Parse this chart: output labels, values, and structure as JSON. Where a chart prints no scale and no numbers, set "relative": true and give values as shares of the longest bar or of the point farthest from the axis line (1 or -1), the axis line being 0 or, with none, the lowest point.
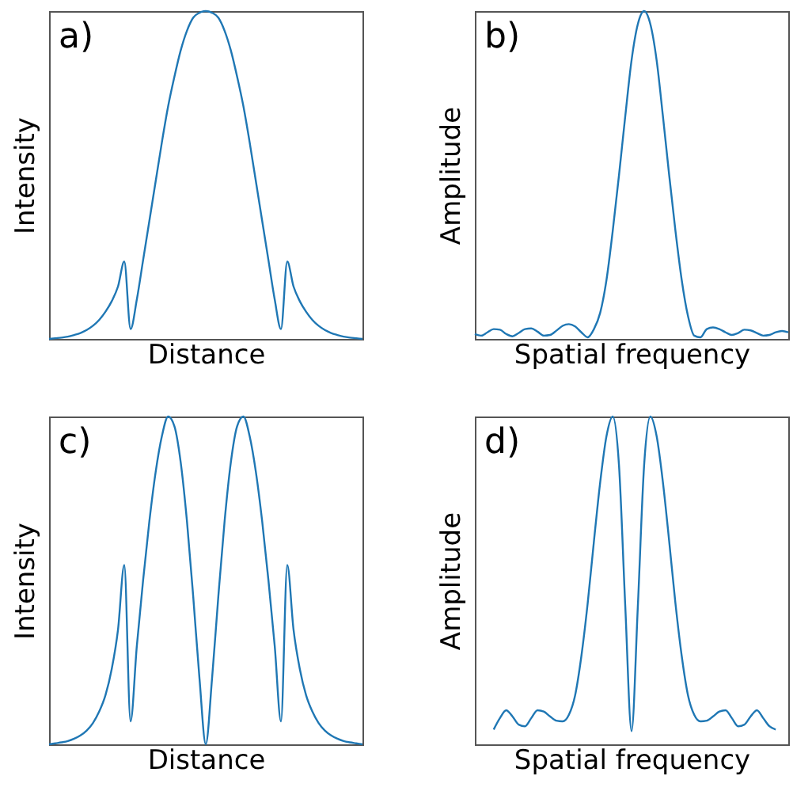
{
  "chart_data": [
    {
      "type": "line",
      "xlabel": "Distance",
      "ylabel": "Intensity",
      "annotations": [
        "a)"
      ],
      "relative": true,
      "categories": [
        null,
        null,
        null,
        null,
        null,
        null,
        null,
        null,
        null,
        null,
        null,
        null,
        null,
        null,
        null,
        null,
        null,
        null,
        null,
        null,
        null,
        null,
        null,
        null,
        null,
        null,
        null,
        null,
        null,
        null,
        null,
        null,
        null,
        null,
        null,
        null,
        null,
        null,
        null,
        null,
        null,
        null,
        null,
        null,
        null,
        null,
        null,
        null,
        null,
        null,
        null
      ],
      "series": [
        {
          "color": "#1f77b4",
          "values": [
            0,
            0.002,
            0.004,
            0.007,
            0.012,
            0.018,
            0.027,
            0.04,
            0.058,
            0.083,
            0.115,
            0.16,
            0.236,
            0.03,
            0.12,
            0.24,
            0.36,
            0.48,
            0.6,
            0.71,
            0.8,
            0.88,
            0.94,
            0.98,
            0.995,
            1,
            0.995,
            0.98,
            0.94,
            0.88,
            0.8,
            0.71,
            0.6,
            0.48,
            0.36,
            0.24,
            0.12,
            0.03,
            0.236,
            0.16,
            0.115,
            0.083,
            0.058,
            0.04,
            0.027,
            0.018,
            0.012,
            0.007,
            0.004,
            0.002,
            0
          ]
        }
      ]
    },
    {
      "type": "line",
      "xlabel": "Spatial frequency",
      "ylabel": "Amplitude",
      "annotations": [
        "b)"
      ],
      "relative": true,
      "categories": [
        null,
        null,
        null,
        null,
        null,
        null,
        null,
        null,
        null,
        null,
        null,
        null,
        null,
        null,
        null,
        null,
        null,
        null,
        null,
        null,
        null,
        null,
        null,
        null,
        null,
        null,
        null,
        null,
        null,
        null,
        null,
        null,
        null,
        null,
        null,
        null,
        null,
        null,
        null,
        null,
        null,
        null,
        null,
        null,
        null,
        null,
        null,
        null,
        null,
        null,
        null
      ],
      "series": [
        {
          "color": "#1f77b4",
          "values": [
            0.015,
            0.01,
            0.02,
            0.03,
            0.028,
            0.015,
            0.008,
            0.018,
            0.03,
            0.032,
            0.022,
            0.01,
            0.012,
            0.025,
            0.04,
            0.045,
            0.038,
            0.02,
            0.005,
            0.03,
            0.08,
            0.18,
            0.33,
            0.5,
            0.68,
            0.85,
            0.96,
            1,
            0.96,
            0.85,
            0.68,
            0.5,
            0.33,
            0.18,
            0.07,
            0.01,
            0.005,
            0.03,
            0.035,
            0.03,
            0.02,
            0.012,
            0.018,
            0.028,
            0.026,
            0.018,
            0.01,
            0.012,
            0.02,
            0.024,
            0.02
          ]
        }
      ]
    },
    {
      "type": "line",
      "xlabel": "Distance",
      "ylabel": "Intensity",
      "annotations": [
        "c)"
      ],
      "relative": true,
      "categories": [
        null,
        null,
        null,
        null,
        null,
        null,
        null,
        null,
        null,
        null,
        null,
        null,
        null,
        null,
        null,
        null,
        null,
        null,
        null,
        null,
        null,
        null,
        null,
        null,
        null,
        null,
        null,
        null,
        null,
        null,
        null,
        null,
        null,
        null,
        null,
        null,
        null,
        null,
        null,
        null,
        null,
        null,
        null,
        null,
        null,
        null,
        null,
        null,
        null,
        null,
        null
      ],
      "series": [
        {
          "color": "#1f77b4",
          "values": [
            0,
            0.003,
            0.006,
            0.01,
            0.017,
            0.027,
            0.042,
            0.065,
            0.1,
            0.15,
            0.23,
            0.35,
            0.547,
            0.07,
            0.3,
            0.5,
            0.68,
            0.83,
            0.94,
            1,
            0.97,
            0.86,
            0.68,
            0.45,
            0.2,
            0,
            0.2,
            0.45,
            0.68,
            0.86,
            0.97,
            1,
            0.94,
            0.83,
            0.68,
            0.5,
            0.3,
            0.07,
            0.547,
            0.35,
            0.23,
            0.15,
            0.1,
            0.065,
            0.042,
            0.027,
            0.017,
            0.01,
            0.006,
            0.003,
            0
          ]
        }
      ]
    },
    {
      "type": "line",
      "xlabel": "Spatial frequency",
      "ylabel": "Amplitude",
      "annotations": [
        "d)"
      ],
      "relative": true,
      "categories": [
        null,
        null,
        null,
        null,
        null,
        null,
        null,
        null,
        null,
        null,
        null,
        null,
        null,
        null,
        null,
        null,
        null,
        null,
        null,
        null,
        null,
        null,
        null,
        null,
        null,
        null,
        null,
        null,
        null,
        null,
        null,
        null,
        null,
        null,
        null,
        null,
        null,
        null,
        null,
        null,
        null,
        null,
        null,
        null,
        null,
        null,
        null,
        null,
        null,
        null,
        null
      ],
      "series": [
        {
          "color": "#1f77b4",
          "values": [
            null,
            null,
            null,
            0.045,
            0.08,
            0.104,
            0.085,
            0.06,
            0.055,
            0.08,
            0.104,
            0.1,
            0.085,
            0.072,
            0.07,
            0.09,
            0.15,
            0.27,
            0.43,
            0.62,
            0.8,
            0.94,
            1,
            0.85,
            0.42,
            0.04,
            0.42,
            0.85,
            1,
            0.94,
            0.8,
            0.62,
            0.43,
            0.27,
            0.15,
            0.09,
            0.07,
            0.072,
            0.085,
            0.1,
            0.104,
            0.08,
            0.055,
            0.06,
            0.085,
            0.104,
            0.08,
            0.055,
            0.045,
            null,
            null
          ]
        }
      ]
    }
  ]
}
